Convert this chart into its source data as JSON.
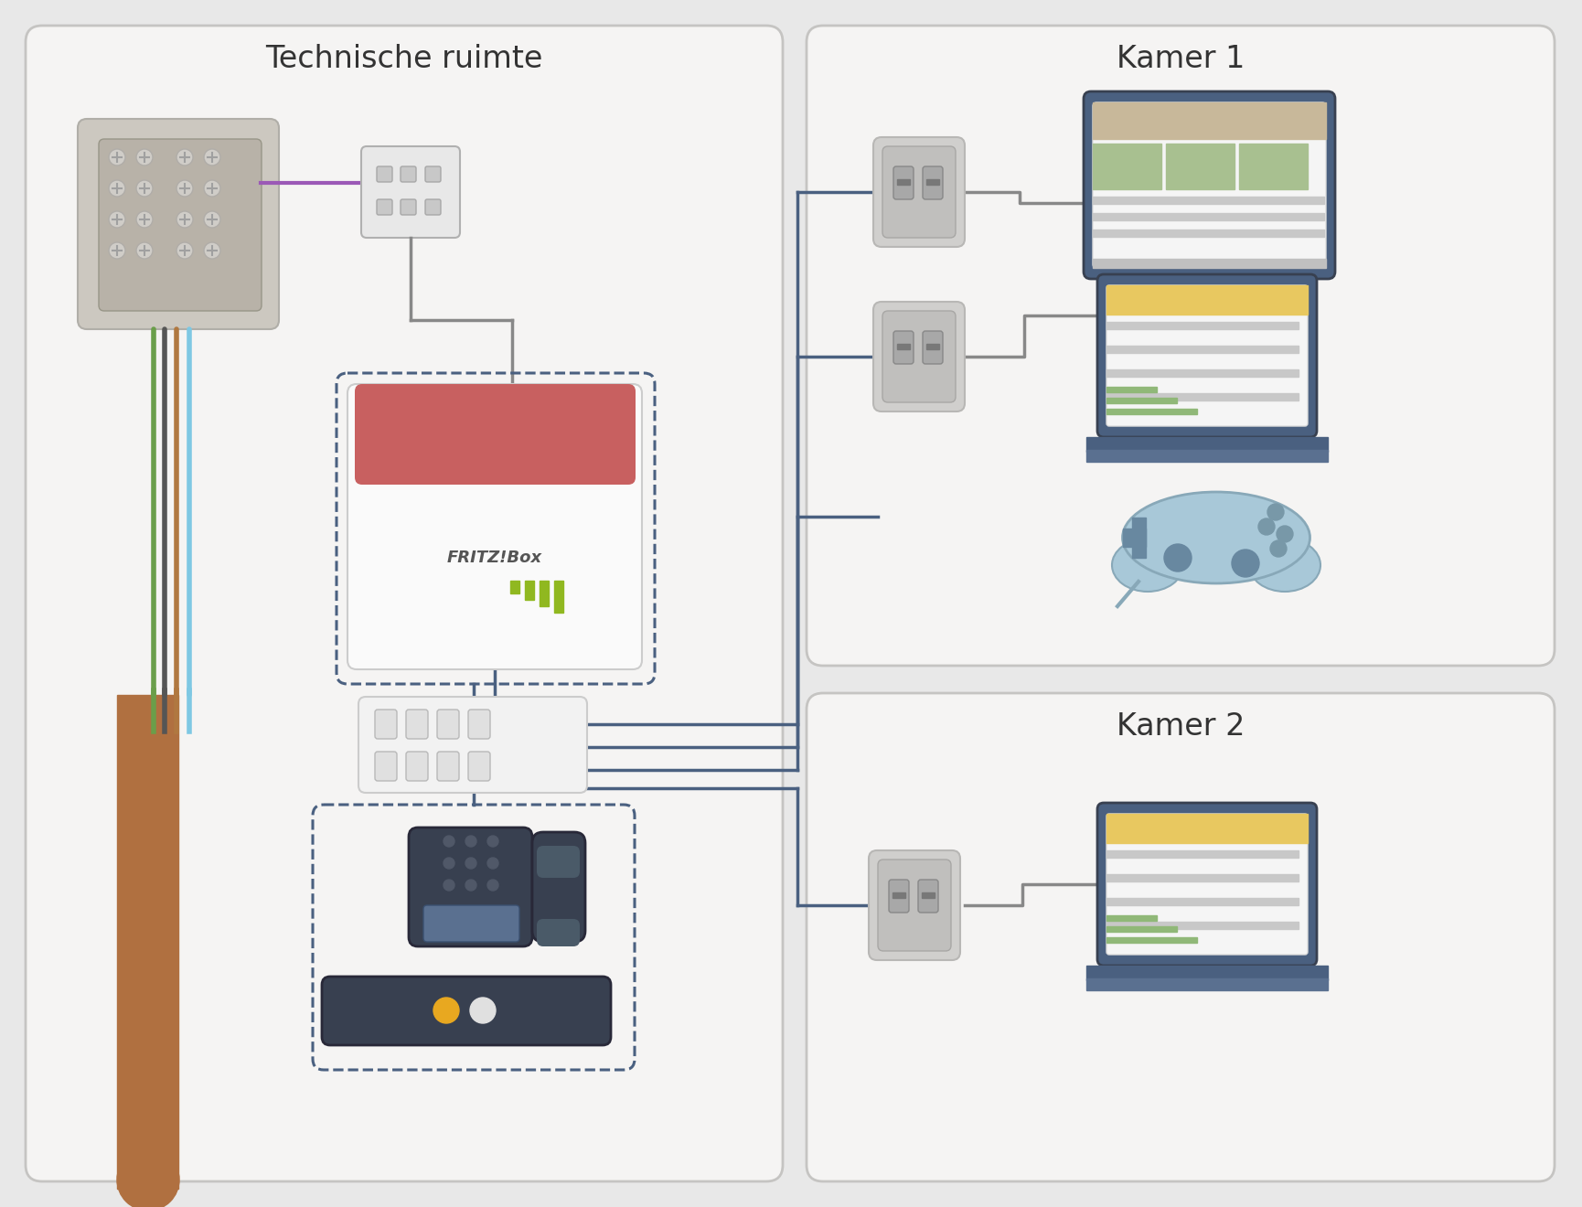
{
  "bg_color": "#e8e8e8",
  "left_box_label": "Technische ruimte",
  "right_top_label": "Kamer 1",
  "right_bottom_label": "Kamer 2",
  "box_fill": "#f5f4f3",
  "box_edge": "#c5c4c2",
  "wire_green": "#6a9e4a",
  "wire_black": "#555555",
  "wire_brown": "#b07840",
  "wire_blue_light": "#7ec8e3",
  "wire_purple": "#9b59b6",
  "wire_gray": "#888888",
  "wire_dark_blue": "#4a6080",
  "fritz_red": "#c86060",
  "fritz_white": "#fafafa",
  "fritz_border": "#cccccc",
  "patch_bg": "#b8b2a8",
  "patch_outer": "#ccc8c0",
  "device_blue": "#4a6080",
  "device_blue_dark": "#384050",
  "screen_tan": "#c8b89a",
  "screen_green": "#a8c090",
  "screen_yellow": "#e8c860",
  "screen_gray": "#c8c8c8",
  "socket_outer": "#d0cfcd",
  "socket_inner": "#c0bfbd",
  "socket_port": "#a0a0a0",
  "gamepad_blue": "#a8c8d8",
  "gamepad_border": "#88a8b8",
  "phone_dark": "#384050",
  "nas_dark": "#384050",
  "nas_led_yellow": "#e8a820",
  "nas_led_white": "#e0e0e0",
  "bar_green": "#90b820",
  "bar_light": "#c8c8a0",
  "dashed_blue": "#4a6080",
  "cable_brown": "#b07040",
  "screw_color": "#d0cdc8",
  "screw_line": "#a0a0a0"
}
